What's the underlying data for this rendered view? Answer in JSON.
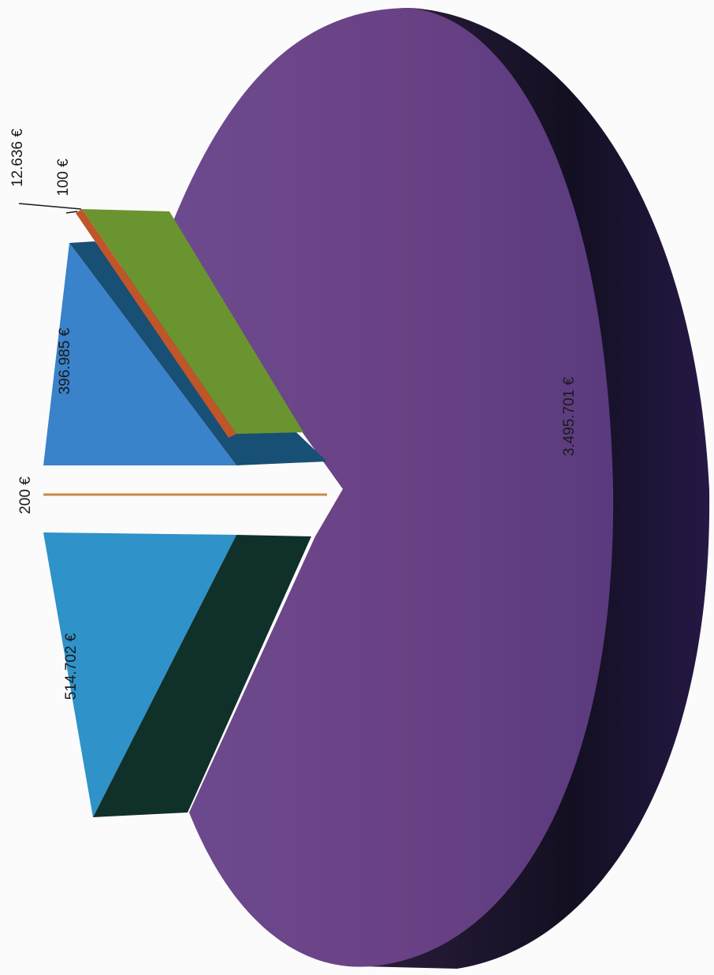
{
  "chart_data": {
    "type": "pie",
    "title": "",
    "style": "3d exploded pie, scanned, rotated 90 degrees",
    "slices": [
      {
        "label": "3.495.701 €",
        "value": 3495701,
        "color": "#6b4585",
        "side_color": "#241735"
      },
      {
        "label": "514.702 €",
        "value": 514702,
        "color": "#2f92c8",
        "side_color": "#10302a"
      },
      {
        "label": "200 €",
        "value": 200,
        "color": "#c98a4a",
        "side_color": "#c98a4a"
      },
      {
        "label": "396.985 €",
        "value": 396985,
        "color": "#3a82c9",
        "side_color": "#184f74"
      },
      {
        "label": "100 €",
        "value": 100,
        "color": "#c0552a",
        "side_color": "#c0552a"
      },
      {
        "label": "12.636 €",
        "value": 12636,
        "color": "#6a9430",
        "side_color": "#4d6e20"
      }
    ]
  }
}
